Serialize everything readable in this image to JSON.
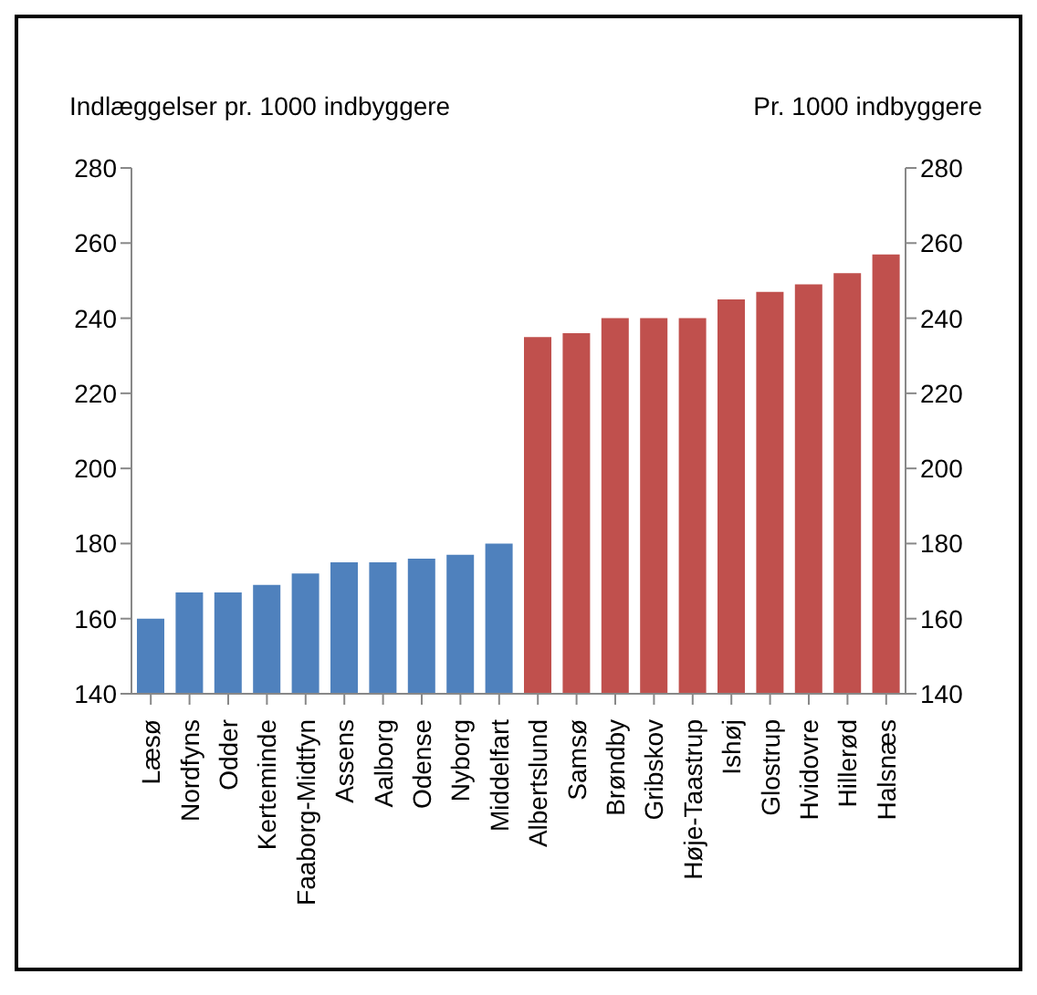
{
  "chart_data": {
    "type": "bar",
    "ylabel": "Indlæggelser pr. 1000 indbyggere",
    "y2label": "Pr. 1000 indbyggere",
    "categories": [
      "Læsø",
      "Nordfyns",
      "Odder",
      "Kerteminde",
      "Faaborg-Midtfyn",
      "Assens",
      "Aalborg",
      "Odense",
      "Nyborg",
      "Middelfart",
      "Albertslund",
      "Samsø",
      "Brøndby",
      "Gribskov",
      "Høje-Taastrup",
      "Ishøj",
      "Glostrup",
      "Hvidovre",
      "Hillerød",
      "Halsnæs"
    ],
    "values": [
      160,
      167,
      167,
      169,
      172,
      175,
      175,
      176,
      177,
      180,
      235,
      236,
      240,
      240,
      240,
      245,
      247,
      249,
      252,
      257
    ],
    "colors": [
      "#4f81bd",
      "#4f81bd",
      "#4f81bd",
      "#4f81bd",
      "#4f81bd",
      "#4f81bd",
      "#4f81bd",
      "#4f81bd",
      "#4f81bd",
      "#4f81bd",
      "#c0504d",
      "#c0504d",
      "#c0504d",
      "#c0504d",
      "#c0504d",
      "#c0504d",
      "#c0504d",
      "#c0504d",
      "#c0504d",
      "#c0504d"
    ],
    "ylim": [
      140,
      280
    ],
    "yticks": [
      140,
      160,
      180,
      200,
      220,
      240,
      260,
      280
    ],
    "y2lim": [
      140,
      280
    ],
    "y2ticks": [
      140,
      160,
      180,
      200,
      220,
      240,
      260,
      280
    ],
    "grid": false,
    "legend": false
  }
}
